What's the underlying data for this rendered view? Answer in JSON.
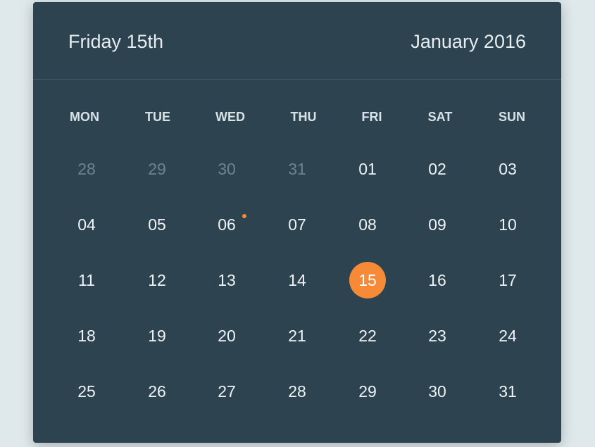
{
  "header": {
    "day_label": "Friday 15th",
    "month_label": "January 2016"
  },
  "weekdays": [
    "MON",
    "TUE",
    "WED",
    "THU",
    "FRI",
    "SAT",
    "SUN"
  ],
  "weeks": [
    [
      {
        "d": "28",
        "muted": true
      },
      {
        "d": "29",
        "muted": true
      },
      {
        "d": "30",
        "muted": true
      },
      {
        "d": "31",
        "muted": true
      },
      {
        "d": "01"
      },
      {
        "d": "02"
      },
      {
        "d": "03"
      }
    ],
    [
      {
        "d": "04"
      },
      {
        "d": "05"
      },
      {
        "d": "06",
        "event": true
      },
      {
        "d": "07"
      },
      {
        "d": "08"
      },
      {
        "d": "09"
      },
      {
        "d": "10"
      }
    ],
    [
      {
        "d": "11"
      },
      {
        "d": "12"
      },
      {
        "d": "13"
      },
      {
        "d": "14"
      },
      {
        "d": "15",
        "selected": true
      },
      {
        "d": "16"
      },
      {
        "d": "17"
      }
    ],
    [
      {
        "d": "18"
      },
      {
        "d": "19"
      },
      {
        "d": "20"
      },
      {
        "d": "21"
      },
      {
        "d": "22"
      },
      {
        "d": "23"
      },
      {
        "d": "24"
      }
    ],
    [
      {
        "d": "25"
      },
      {
        "d": "26"
      },
      {
        "d": "27"
      },
      {
        "d": "28"
      },
      {
        "d": "29"
      },
      {
        "d": "30"
      },
      {
        "d": "31"
      }
    ]
  ],
  "colors": {
    "background": "#dfe9ec",
    "panel": "#2d4350",
    "accent": "#f78a37",
    "text": "#eef3f5",
    "muted_text": "#6d8490"
  }
}
